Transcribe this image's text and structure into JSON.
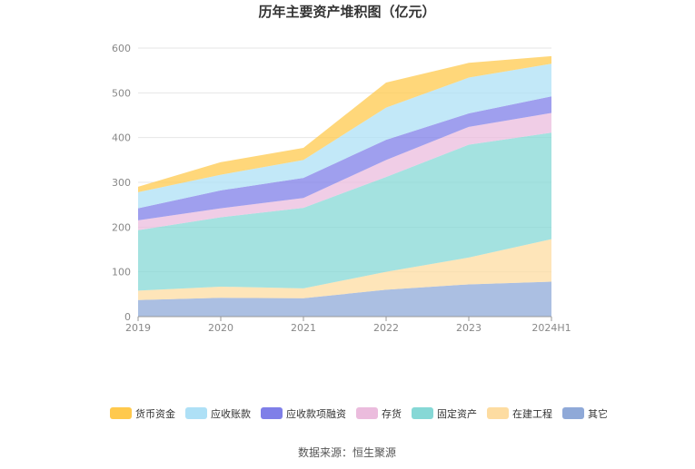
{
  "chart_data": {
    "type": "area",
    "stacked": true,
    "title": "历年主要资产堆积图（亿元）",
    "xlabel": "",
    "ylabel": "",
    "x": [
      "2019",
      "2020",
      "2021",
      "2022",
      "2023",
      "2024H1"
    ],
    "ylim": [
      0,
      600
    ],
    "yticks": [
      0,
      100,
      200,
      300,
      400,
      500,
      600
    ],
    "grid": true,
    "legend_position": "bottom",
    "series": [
      {
        "name": "其它",
        "color": "#8FA9D8",
        "values": [
          37,
          42,
          41,
          60,
          72,
          78
        ]
      },
      {
        "name": "在建工程",
        "color": "#FDDCA1",
        "values": [
          21,
          25,
          22,
          40,
          60,
          95
        ]
      },
      {
        "name": "固定资产",
        "color": "#86D8D6",
        "values": [
          135,
          155,
          180,
          212,
          252,
          238
        ]
      },
      {
        "name": "存货",
        "color": "#EBBCDD",
        "values": [
          22,
          20,
          22,
          38,
          40,
          44
        ]
      },
      {
        "name": "应收款项融资",
        "color": "#7F7FE8",
        "values": [
          27,
          40,
          45,
          45,
          30,
          37
        ]
      },
      {
        "name": "应收账款",
        "color": "#AEE0F6",
        "values": [
          36,
          35,
          40,
          72,
          80,
          73
        ]
      },
      {
        "name": "货币资金",
        "color": "#FFC94D",
        "values": [
          12,
          28,
          27,
          56,
          33,
          17
        ]
      }
    ],
    "legend_order": [
      "货币资金",
      "应收账款",
      "应收款项融资",
      "存货",
      "固定资产",
      "在建工程",
      "其它"
    ]
  },
  "source_text": "数据来源：恒生聚源"
}
